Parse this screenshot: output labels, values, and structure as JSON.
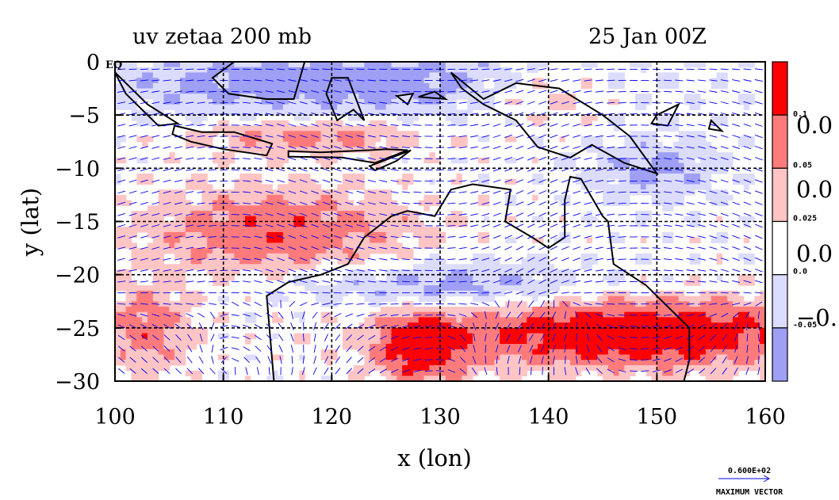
{
  "chart_data": {
    "type": "heatmap",
    "title": "uv zetaa 200 mb",
    "subtitle": "25 Jan 00Z",
    "xlabel": "x (lon)",
    "ylabel": "y (lat)",
    "xlim": [
      100,
      160
    ],
    "ylim": [
      -30,
      0
    ],
    "x_ticks": [
      100,
      110,
      120,
      130,
      140,
      150,
      160
    ],
    "x_tick_labels": [
      "100",
      "110",
      "120",
      "130",
      "140",
      "150",
      "160"
    ],
    "y_ticks": [
      0,
      -5,
      -10,
      -15,
      -20,
      -25,
      -30
    ],
    "y_tick_labels": [
      "0",
      "−5",
      "−10",
      "−15",
      "−20",
      "−25",
      "−30"
    ],
    "y_zero_suffix": "EQ",
    "grid": true,
    "colorbar": {
      "levels": [
        {
          "label": "0.1",
          "color": "#ff0000"
        },
        {
          "label": "0.05",
          "color": "#ff7b7b"
        },
        {
          "label": "0.025",
          "color": "#ffc4c4"
        },
        {
          "label": "0.0",
          "color": "#ffffff"
        },
        {
          "label": "-0.05",
          "color": "#dcdcff"
        },
        {
          "label": "",
          "color": "#9f9ff5"
        }
      ],
      "clipped_labels": [
        "0.0",
        "0.0",
        "0.0",
        "−0."
      ]
    },
    "vector_reference": {
      "value": "0.600E+02",
      "label": "MAXIMUM VECTOR"
    },
    "colors": {
      "strong_positive": "#ff0000",
      "positive": "#ff7b7b",
      "weak_positive": "#ffc4c4",
      "light_negative": "#dcdcff",
      "negative": "#9f9ff5",
      "contour": "#ff0000",
      "wind_vectors": "#0000ee",
      "coastline": "#000000"
    }
  }
}
